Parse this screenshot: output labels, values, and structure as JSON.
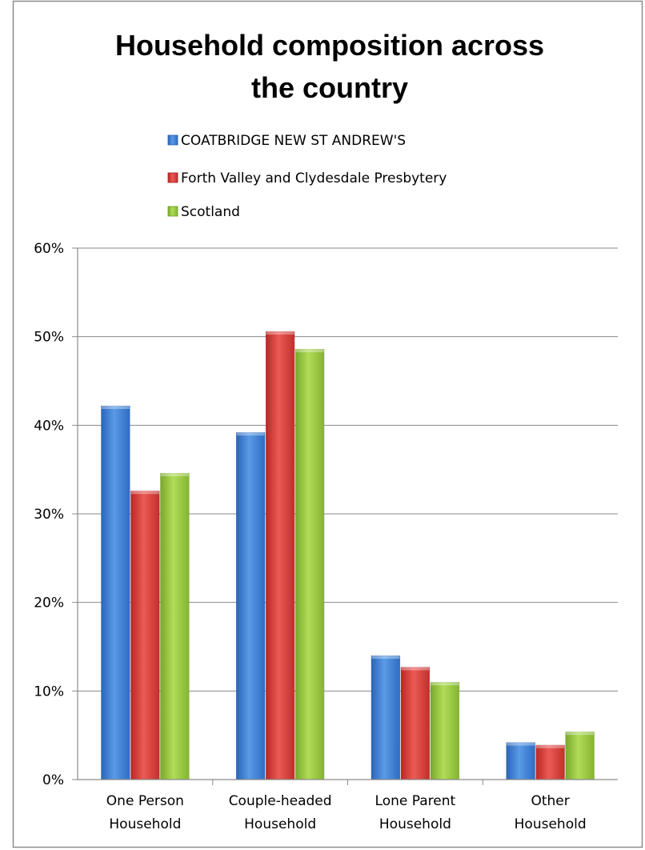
{
  "chart_data": {
    "type": "bar",
    "title_lines": [
      "Household composition across",
      "the country"
    ],
    "categories": [
      [
        "One Person",
        "Household"
      ],
      [
        "Couple-headed",
        "Household"
      ],
      [
        "Lone Parent",
        "Household"
      ],
      [
        "Other",
        "Household"
      ]
    ],
    "series": [
      {
        "name": "COATBRIDGE NEW ST ANDREW'S",
        "color": "#3c7fd4",
        "values": [
          42.2,
          39.2,
          14.0,
          4.2
        ]
      },
      {
        "name": "Forth Valley and Clydesdale Presbytery",
        "color": "#d63a37",
        "values": [
          32.6,
          50.6,
          12.7,
          3.9
        ]
      },
      {
        "name": "Scotland",
        "color": "#95c63b",
        "values": [
          34.6,
          48.6,
          11.0,
          5.4
        ]
      }
    ],
    "y_ticks": [
      "0%",
      "10%",
      "20%",
      "30%",
      "40%",
      "50%",
      "60%"
    ],
    "ylim": [
      0,
      60
    ],
    "grid": true,
    "legend_position": "top"
  }
}
